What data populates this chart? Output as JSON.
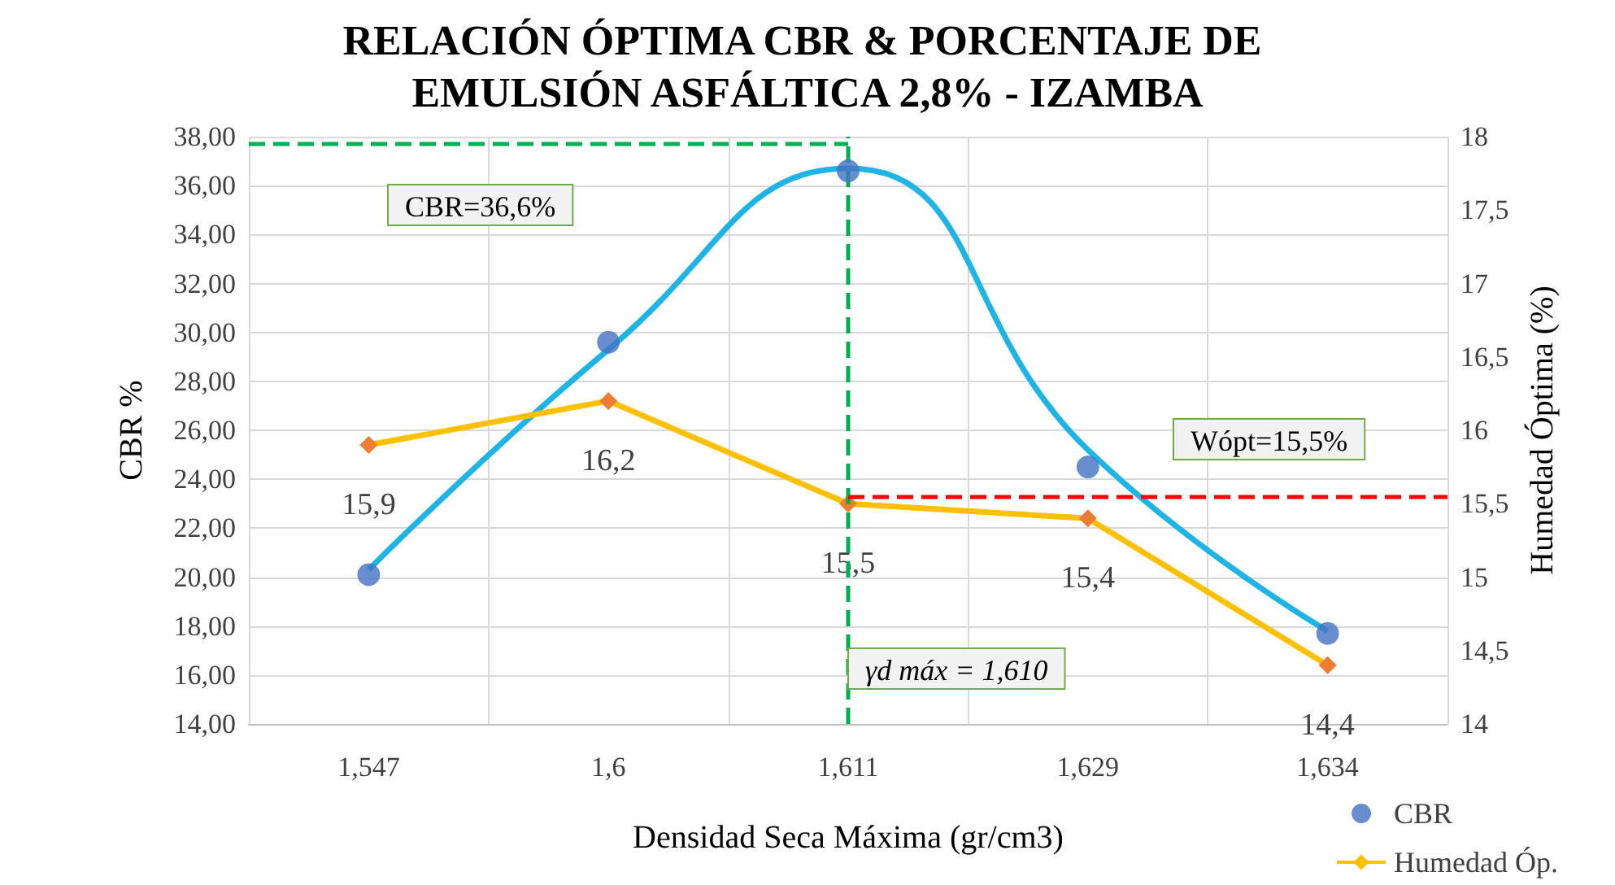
{
  "chart_data": {
    "type": "scatter",
    "title": "RELACIÓN ÓPTIMA CBR & PORCENTAJE DE EMULSIÓN ASFÁLTICA 2,8% - IZAMBA",
    "xlabel": "Densidad Seca Máxima (gr/cm3)",
    "ylabel": "CBR %",
    "y2label": "Humedad Óptima (%)",
    "categories": [
      "1,547",
      "1,6",
      "1,611",
      "1,629",
      "1,634"
    ],
    "series": [
      {
        "name": "CBR",
        "color": "#4472c4",
        "marker": "circle",
        "values": [
          20.1,
          29.6,
          36.6,
          24.5,
          17.7
        ]
      },
      {
        "type": "line",
        "color": "#1fb4e6",
        "marker": "none",
        "values": [
          20.3,
          29.3,
          36.7,
          25.2,
          17.8
        ]
      },
      {
        "name": "Humedad Óp.",
        "type": "line",
        "axis": "y2",
        "color": "#ffc000",
        "colors": [
          "#ed7d31",
          "#ed7d31",
          "#ed7d31",
          "#ed7d31",
          "#ed7d31"
        ],
        "marker": "diamond",
        "values": [
          15.9,
          16.2,
          15.5,
          15.4,
          14.4
        ],
        "value_labels": [
          "15,9",
          "16,2",
          "15,5",
          "15,4",
          "14,4"
        ]
      }
    ],
    "ylim": [
      14,
      38
    ],
    "yticks": [
      {
        "value": 14,
        "label": "14,00"
      },
      {
        "value": 16,
        "label": "16,00"
      },
      {
        "value": 18,
        "label": "18,00"
      },
      {
        "value": 20,
        "label": "20,00"
      },
      {
        "value": 22,
        "label": "22,00"
      },
      {
        "value": 24,
        "label": "24,00"
      },
      {
        "value": 26,
        "label": "26,00"
      },
      {
        "value": 28,
        "label": "28,00"
      },
      {
        "value": 30,
        "label": "30,00"
      },
      {
        "value": 32,
        "label": "32,00"
      },
      {
        "value": 34,
        "label": "34,00"
      },
      {
        "value": 36,
        "label": "36,00"
      },
      {
        "value": 38,
        "label": "38,00"
      }
    ],
    "y2lim": [
      14,
      18
    ],
    "y2ticks": [
      14,
      {
        "value": 14.5,
        "label": "14,5"
      },
      15,
      {
        "value": 15.5,
        "label": "15,5"
      },
      16,
      {
        "value": 16.5,
        "label": "16,5"
      },
      17,
      {
        "value": 17.5,
        "label": "17,5"
      },
      18
    ],
    "ref_lines": [
      {
        "axis": "x",
        "value": "1,611",
        "color": "#00b050",
        "line_style": "dashed"
      },
      {
        "axis": "y",
        "value": 37.7,
        "color": "#00b050",
        "line_style": "dashed"
      },
      {
        "axis": "y2",
        "value": 15.55,
        "color": "#ff0000",
        "line_style": "dashed"
      }
    ],
    "annotations": [
      "CBR=36,6%",
      "Wópt=15,5%",
      "γd máx = 1,610"
    ],
    "grid": true,
    "legend": "bottom right"
  }
}
